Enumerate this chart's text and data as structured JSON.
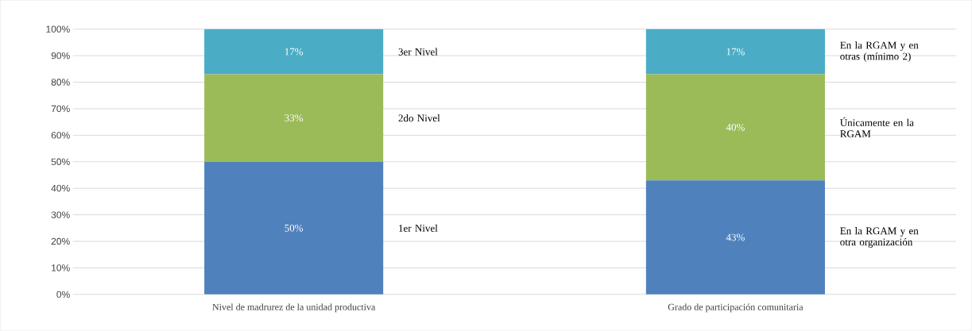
{
  "chart_data": {
    "type": "bar",
    "stacked": true,
    "categories": [
      "Nivel de madrurez de la unidad productiva",
      "Grado de participación comunitaria"
    ],
    "series": [
      {
        "color": "#4f81bd",
        "values": [
          50,
          43
        ],
        "value_labels": [
          "50%",
          "43%"
        ]
      },
      {
        "color": "#9bbb59",
        "values": [
          33,
          40
        ],
        "value_labels": [
          "33%",
          "40%"
        ]
      },
      {
        "color": "#4bacc6",
        "values": [
          17,
          17
        ],
        "value_labels": [
          "17%",
          "17%"
        ]
      }
    ],
    "ylim": [
      0,
      100
    ],
    "yticks": [
      {
        "value": 0,
        "label": "0%"
      },
      {
        "value": 10,
        "label": "10%"
      },
      {
        "value": 20,
        "label": "20%"
      },
      {
        "value": 30,
        "label": "30%"
      },
      {
        "value": 40,
        "label": "40%"
      },
      {
        "value": 50,
        "label": "50%"
      },
      {
        "value": 60,
        "label": "60%"
      },
      {
        "value": 70,
        "label": "70%"
      },
      {
        "value": 80,
        "label": "80%"
      },
      {
        "value": 90,
        "label": "90%"
      },
      {
        "value": 100,
        "label": "100%"
      }
    ],
    "grid": "y",
    "annotations": [
      "3er Nivel",
      "2do Nivel",
      "1er Nivel",
      "En la RGAM  y en otras (mínimo 2)",
      "Únicamente en la RGAM",
      "En la RGAM y en otra organización"
    ]
  }
}
